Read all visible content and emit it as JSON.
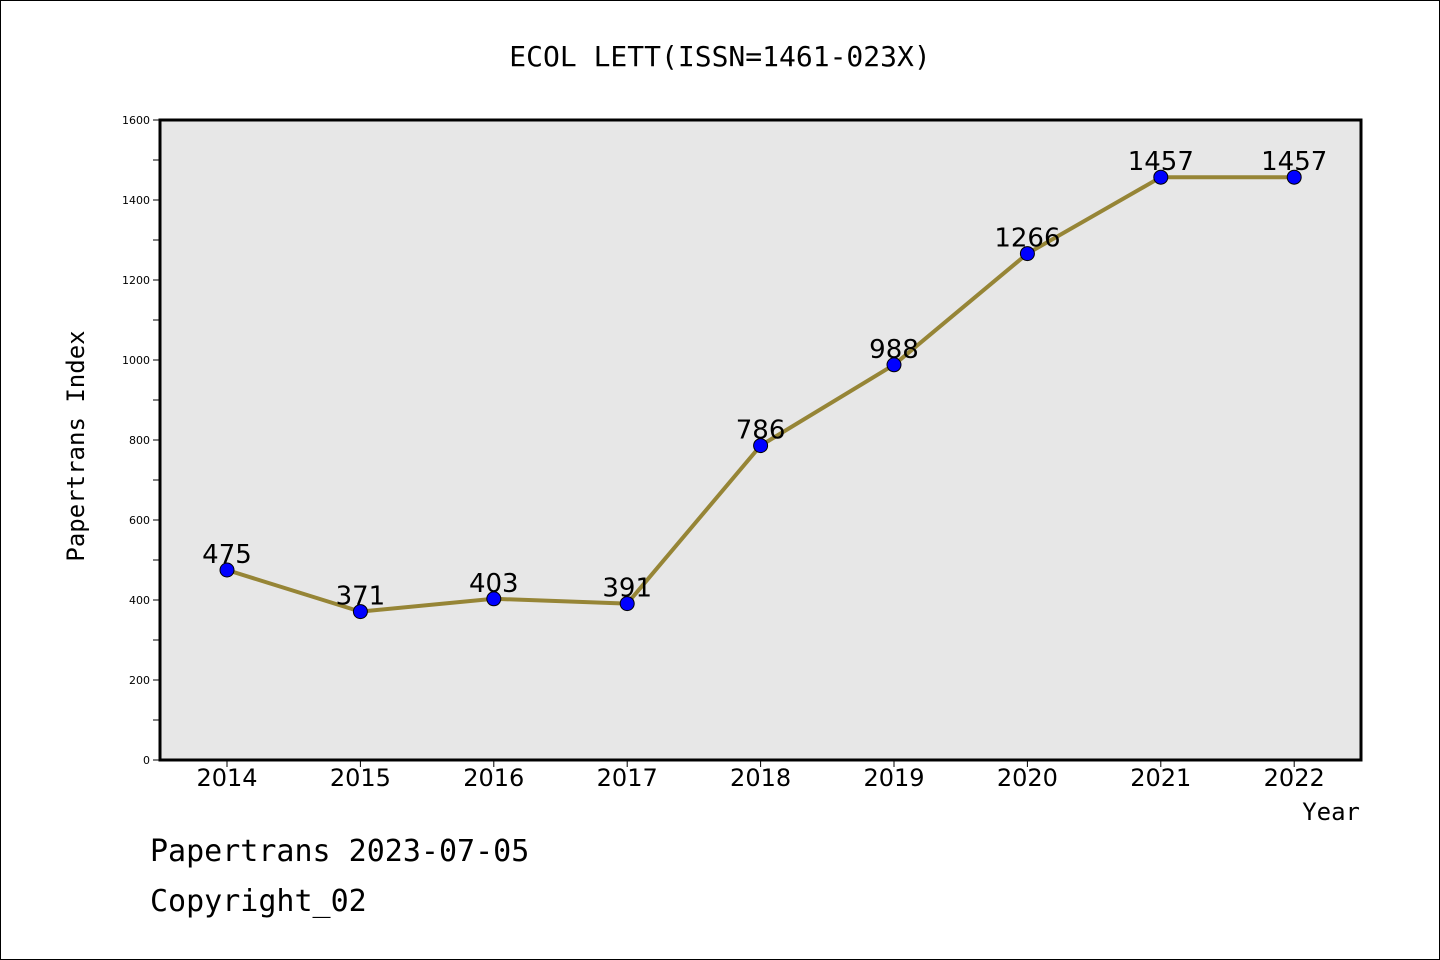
{
  "chart_data": {
    "type": "line",
    "title": "ECOL LETT(ISSN=1461-023X)",
    "xlabel": "Year",
    "ylabel": "Papertrans Index",
    "x": [
      "2014",
      "2015",
      "2016",
      "2017",
      "2018",
      "2019",
      "2020",
      "2021",
      "2022"
    ],
    "series": [
      {
        "values": [
          475,
          371,
          403,
          391,
          786,
          988,
          1266,
          1457,
          1457
        ]
      }
    ],
    "ylim": [
      0,
      1600
    ],
    "yticks": [
      0,
      200,
      400,
      600,
      800,
      1000,
      1200,
      1400,
      1600
    ],
    "data_labels": [
      "475",
      "371",
      "403",
      "391",
      "786",
      "988",
      "1266",
      "1457",
      "1457"
    ],
    "grid": false,
    "legend": "none",
    "colors": {
      "line": "#968536",
      "marker": "#0000ff",
      "plot_background": "#e7e7e7"
    }
  },
  "footer": {
    "line1": "Papertrans 2023-07-05",
    "line2": "Copyright_02"
  }
}
